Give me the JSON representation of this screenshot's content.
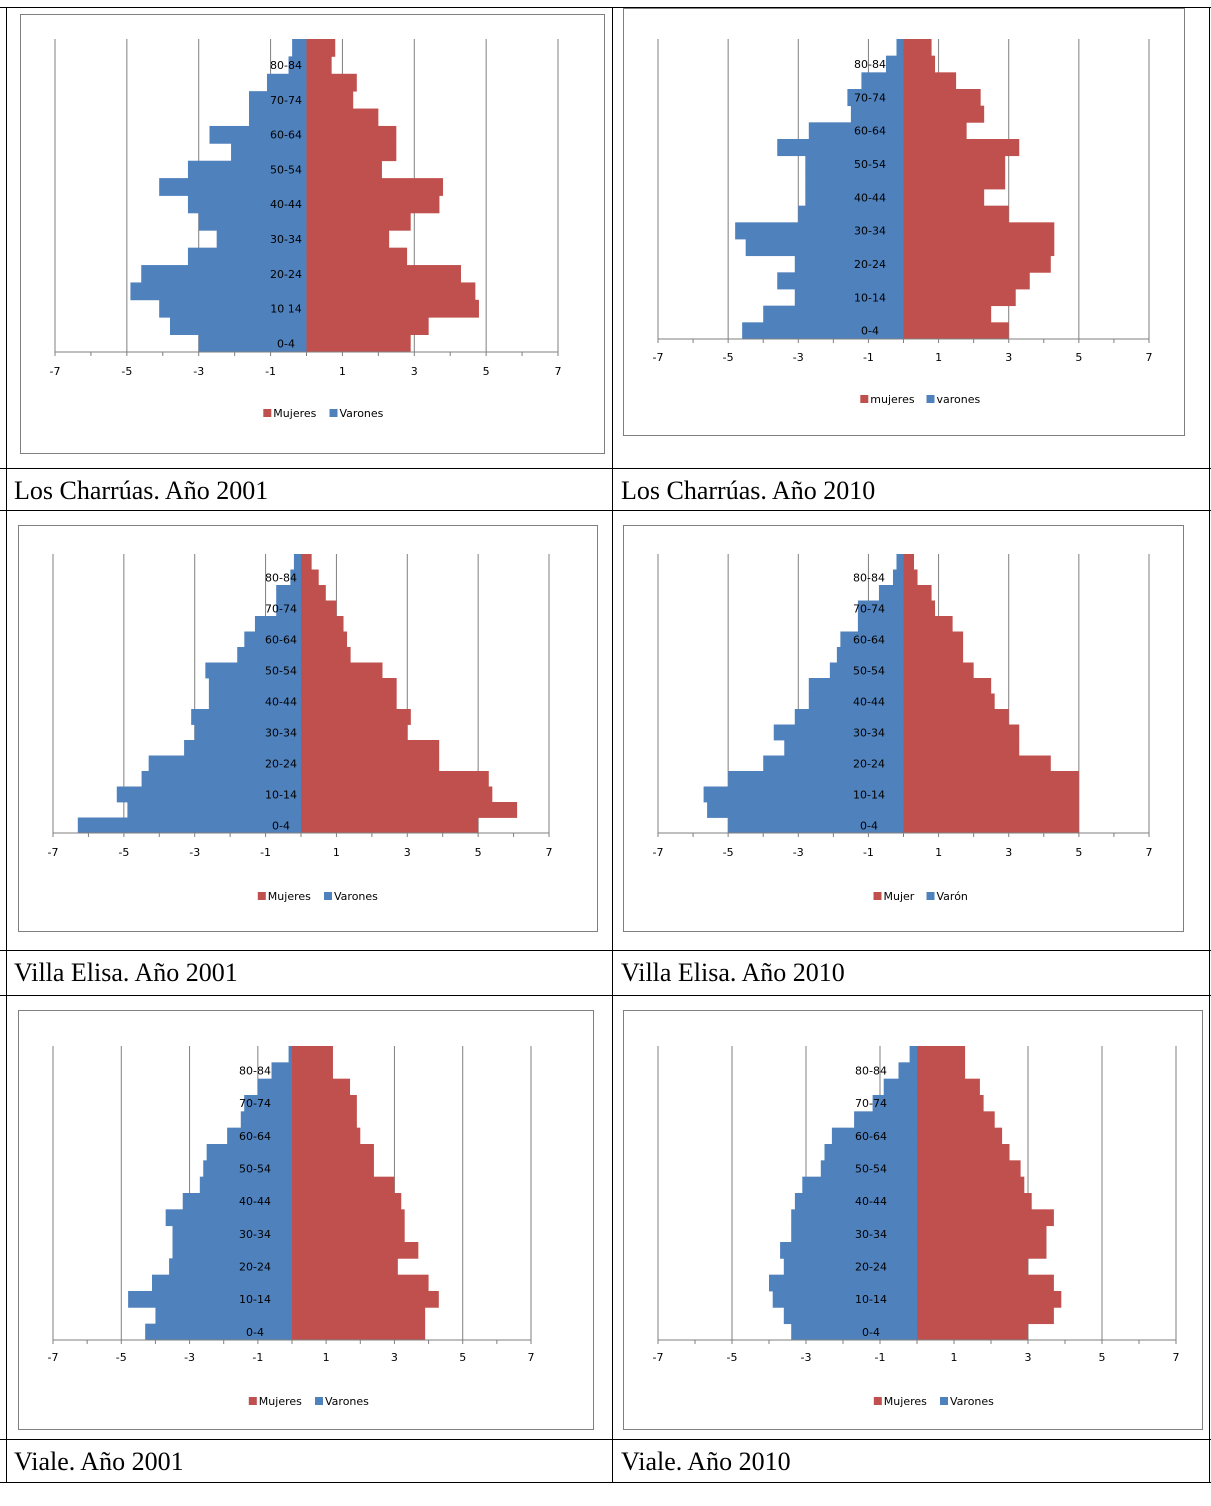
{
  "colors": {
    "women": "#c0504d",
    "men": "#4f81bd",
    "gridline": "#7f7f7f",
    "axis": "#7f7f7f",
    "text": "#000000"
  },
  "captions": [
    "Los Charrúas. Año 2001",
    "Los Charrúas. Año 2010",
    "Villa Elisa. Año 2001",
    "Villa Elisa. Año 2010",
    "Viale. Año 2001",
    "Viale. Año 2010"
  ],
  "chart_data": [
    {
      "type": "bar",
      "orientation": "horizontal",
      "stacked": "population-pyramid",
      "xlim": [
        -7,
        7
      ],
      "xticks": [
        "-7",
        "-5",
        "-3",
        "-1",
        "1",
        "3",
        "5",
        "7"
      ],
      "ytick_labels": [
        "0-4",
        "10 14",
        "20-24",
        "30-34",
        "40-44",
        "50-54",
        "60-64",
        "70-74",
        "80-84"
      ],
      "legend": {
        "position": "bottom",
        "labels": [
          "Mujeres",
          "Varones"
        ]
      },
      "series": [
        {
          "name": "Mujeres",
          "values": [
            2.9,
            3.4,
            4.8,
            4.7,
            4.3,
            2.8,
            2.3,
            2.9,
            3.7,
            3.8,
            2.1,
            2.5,
            2.5,
            2.0,
            1.3,
            1.4,
            0.7,
            0.8
          ]
        },
        {
          "name": "Varones",
          "values": [
            -3.0,
            -3.8,
            -4.1,
            -4.9,
            -4.6,
            -3.3,
            -2.5,
            -3.0,
            -3.3,
            -4.1,
            -3.3,
            -2.1,
            -2.7,
            -1.6,
            -1.6,
            -1.1,
            -0.5,
            -0.4
          ]
        }
      ]
    },
    {
      "type": "bar",
      "orientation": "horizontal",
      "stacked": "population-pyramid",
      "xlim": [
        -7,
        7
      ],
      "xticks": [
        "-7",
        "-5",
        "-3",
        "-1",
        "1",
        "3",
        "5",
        "7"
      ],
      "ytick_labels": [
        "0-4",
        "10-14",
        "20-24",
        "30-34",
        "40-44",
        "50-54",
        "60-64",
        "70-74",
        "80-84"
      ],
      "legend": {
        "position": "bottom",
        "labels": [
          "mujeres",
          "varones"
        ]
      },
      "series": [
        {
          "name": "mujeres",
          "values": [
            3.0,
            2.5,
            3.2,
            3.6,
            4.2,
            4.3,
            4.3,
            3.0,
            2.3,
            2.9,
            2.9,
            3.3,
            1.8,
            2.3,
            2.2,
            1.5,
            0.9,
            0.8
          ]
        },
        {
          "name": "varones",
          "values": [
            -4.6,
            -4.0,
            -3.1,
            -3.6,
            -3.1,
            -4.5,
            -4.8,
            -3.0,
            -2.8,
            -2.8,
            -2.8,
            -3.6,
            -2.7,
            -1.5,
            -1.6,
            -1.2,
            -0.5,
            -0.2
          ]
        }
      ]
    },
    {
      "type": "bar",
      "orientation": "horizontal",
      "stacked": "population-pyramid",
      "xlim": [
        -7,
        7
      ],
      "xticks": [
        "-7",
        "-5",
        "-3",
        "-1",
        "1",
        "3",
        "5",
        "7"
      ],
      "ytick_labels": [
        "0-4",
        "10-14",
        "20-24",
        "30-34",
        "40-44",
        "50-54",
        "60-64",
        "70-74",
        "80-84"
      ],
      "legend": {
        "position": "bottom",
        "labels": [
          "Mujeres",
          "Varones"
        ]
      },
      "series": [
        {
          "name": "Mujeres",
          "values": [
            5.0,
            6.1,
            5.4,
            5.3,
            3.9,
            3.9,
            3.0,
            3.1,
            2.7,
            2.7,
            2.3,
            1.4,
            1.3,
            1.2,
            1.0,
            0.7,
            0.5,
            0.3
          ]
        },
        {
          "name": "Varones",
          "values": [
            -6.3,
            -4.9,
            -5.2,
            -4.5,
            -4.3,
            -3.3,
            -3.0,
            -3.1,
            -2.6,
            -2.6,
            -2.7,
            -1.8,
            -1.6,
            -1.3,
            -0.7,
            -0.7,
            -0.3,
            -0.2
          ]
        }
      ]
    },
    {
      "type": "bar",
      "orientation": "horizontal",
      "stacked": "population-pyramid",
      "xlim": [
        -7,
        7
      ],
      "xticks": [
        "-7",
        "-5",
        "-3",
        "-1",
        "1",
        "3",
        "5",
        "7"
      ],
      "ytick_labels": [
        "0-4",
        "10-14",
        "20-24",
        "30-34",
        "40-44",
        "50-54",
        "60-64",
        "70-74",
        "80-84"
      ],
      "legend": {
        "position": "bottom",
        "labels": [
          "Mujer",
          "Varón"
        ]
      },
      "series": [
        {
          "name": "Mujer",
          "values": [
            5.0,
            5.0,
            5.0,
            5.0,
            4.2,
            3.3,
            3.3,
            3.0,
            2.6,
            2.5,
            2.0,
            1.7,
            1.7,
            1.4,
            0.9,
            0.8,
            0.4,
            0.3
          ]
        },
        {
          "name": "Varón",
          "values": [
            -5.0,
            -5.6,
            -5.7,
            -5.0,
            -4.0,
            -3.4,
            -3.7,
            -3.1,
            -2.7,
            -2.7,
            -2.1,
            -1.9,
            -1.8,
            -1.3,
            -1.3,
            -0.7,
            -0.3,
            -0.2
          ]
        }
      ]
    },
    {
      "type": "bar",
      "orientation": "horizontal",
      "stacked": "population-pyramid",
      "xlim": [
        -7,
        7
      ],
      "xticks": [
        "-7",
        "-5",
        "-3",
        "-1",
        "1",
        "3",
        "5",
        "7"
      ],
      "ytick_labels": [
        "0-4",
        "10-14",
        "20-24",
        "30-34",
        "40-44",
        "50-54",
        "60-64",
        "70-74",
        "80-84"
      ],
      "legend": {
        "position": "bottom",
        "labels": [
          "Mujeres",
          "Varones"
        ]
      },
      "series": [
        {
          "name": "Mujeres",
          "values": [
            3.9,
            3.9,
            4.3,
            4.0,
            3.1,
            3.7,
            3.3,
            3.3,
            3.2,
            3.0,
            2.4,
            2.4,
            2.0,
            1.9,
            1.9,
            1.7,
            1.2,
            1.2
          ]
        },
        {
          "name": "Varones",
          "values": [
            -4.3,
            -4.0,
            -4.8,
            -4.1,
            -3.6,
            -3.5,
            -3.5,
            -3.7,
            -3.2,
            -2.7,
            -2.6,
            -2.5,
            -1.9,
            -1.5,
            -1.4,
            -1.0,
            -0.6,
            -0.1
          ]
        }
      ]
    },
    {
      "type": "bar",
      "orientation": "horizontal",
      "stacked": "population-pyramid",
      "xlim": [
        -7,
        7
      ],
      "xticks": [
        "-7",
        "-5",
        "-3",
        "-1",
        "1",
        "3",
        "5",
        "7"
      ],
      "ytick_labels": [
        "0-4",
        "10-14",
        "20-24",
        "30-34",
        "40-44",
        "50-54",
        "60-64",
        "70-74",
        "80-84"
      ],
      "legend": {
        "position": "bottom",
        "labels": [
          "Mujeres",
          "Varones"
        ]
      },
      "series": [
        {
          "name": "Mujeres",
          "values": [
            3.0,
            3.7,
            3.9,
            3.7,
            3.0,
            3.5,
            3.5,
            3.7,
            3.1,
            2.9,
            2.8,
            2.5,
            2.3,
            2.1,
            1.8,
            1.7,
            1.3,
            1.3
          ]
        },
        {
          "name": "Varones",
          "values": [
            -3.4,
            -3.6,
            -3.9,
            -4.0,
            -3.6,
            -3.7,
            -3.4,
            -3.4,
            -3.3,
            -3.1,
            -2.6,
            -2.5,
            -2.3,
            -1.7,
            -1.2,
            -0.9,
            -0.5,
            -0.2
          ]
        }
      ]
    }
  ]
}
